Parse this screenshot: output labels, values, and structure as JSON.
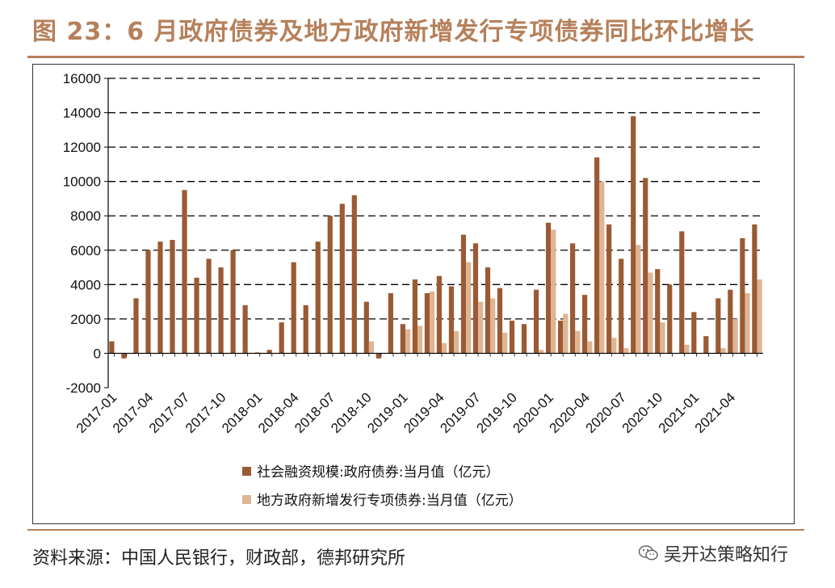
{
  "title": "图 23：6 月政府债券及地方政府新增发行专项债券同比环比增长",
  "source": "资料来源：中国人民银行，财政部，德邦研究所",
  "watermark": "吴开达策略知行",
  "colors": {
    "series1": "#9a5a33",
    "series2": "#e0b594",
    "accent": "#b5805a"
  },
  "chart_data": {
    "type": "bar",
    "ylim": [
      -2000,
      16000
    ],
    "yticks": [
      16000,
      14000,
      12000,
      10000,
      8000,
      6000,
      4000,
      2000,
      0,
      -2000
    ],
    "yticklabels": [
      "16000",
      "14000",
      "12000",
      "10000",
      "8000",
      "6000",
      "4000",
      "2000",
      "0",
      "-2000"
    ],
    "categories": [
      "2017-01",
      "2017-02",
      "2017-03",
      "2017-04",
      "2017-05",
      "2017-06",
      "2017-07",
      "2017-08",
      "2017-09",
      "2017-10",
      "2017-11",
      "2017-12",
      "2018-01",
      "2018-02",
      "2018-03",
      "2018-04",
      "2018-05",
      "2018-06",
      "2018-07",
      "2018-08",
      "2018-09",
      "2018-10",
      "2018-11",
      "2018-12",
      "2019-01",
      "2019-02",
      "2019-03",
      "2019-04",
      "2019-05",
      "2019-06",
      "2019-07",
      "2019-08",
      "2019-09",
      "2019-10",
      "2019-11",
      "2019-12",
      "2020-01",
      "2020-02",
      "2020-03",
      "2020-04",
      "2020-05",
      "2020-06",
      "2020-07",
      "2020-08",
      "2020-09",
      "2020-10",
      "2020-11",
      "2020-12",
      "2021-01",
      "2021-02",
      "2021-03",
      "2021-04",
      "2021-05",
      "2021-06"
    ],
    "xticklabels": [
      "2017-01",
      "2017-04",
      "2017-07",
      "2017-10",
      "2018-01",
      "2018-04",
      "2018-07",
      "2018-10",
      "2019-01",
      "2019-04",
      "2019-07",
      "2019-10",
      "2020-01",
      "2020-04",
      "2020-07",
      "2020-10",
      "2021-01",
      "2021-04"
    ],
    "series": [
      {
        "name": "社会融资规模:政府债券:当月值（亿元）",
        "values": [
          700,
          -300,
          3200,
          6000,
          6500,
          6600,
          9500,
          4400,
          5500,
          5000,
          6000,
          2800,
          50,
          200,
          1800,
          5300,
          2800,
          6500,
          8000,
          8700,
          9200,
          3000,
          -300,
          3500,
          1700,
          4300,
          3500,
          4500,
          3900,
          6900,
          6400,
          5000,
          3800,
          1900,
          1700,
          3700,
          7600,
          1900,
          6400,
          3400,
          11400,
          7500,
          5500,
          13800,
          10200,
          4900,
          4000,
          7100,
          2400,
          1000,
          3200,
          3700,
          6700,
          7500
        ]
      },
      {
        "name": "地方政府新增发行专项债券:当月值（亿元）",
        "values": [
          0,
          0,
          0,
          0,
          0,
          0,
          0,
          0,
          0,
          0,
          0,
          0,
          0,
          0,
          0,
          0,
          0,
          0,
          0,
          0,
          0,
          700,
          0,
          0,
          1400,
          1600,
          3600,
          600,
          1300,
          5300,
          3000,
          3200,
          1200,
          0,
          0,
          200,
          7200,
          2300,
          1300,
          700,
          10000,
          900,
          300,
          6300,
          4700,
          1800,
          0,
          500,
          0,
          0,
          300,
          2000,
          3500,
          4300
        ]
      }
    ]
  }
}
